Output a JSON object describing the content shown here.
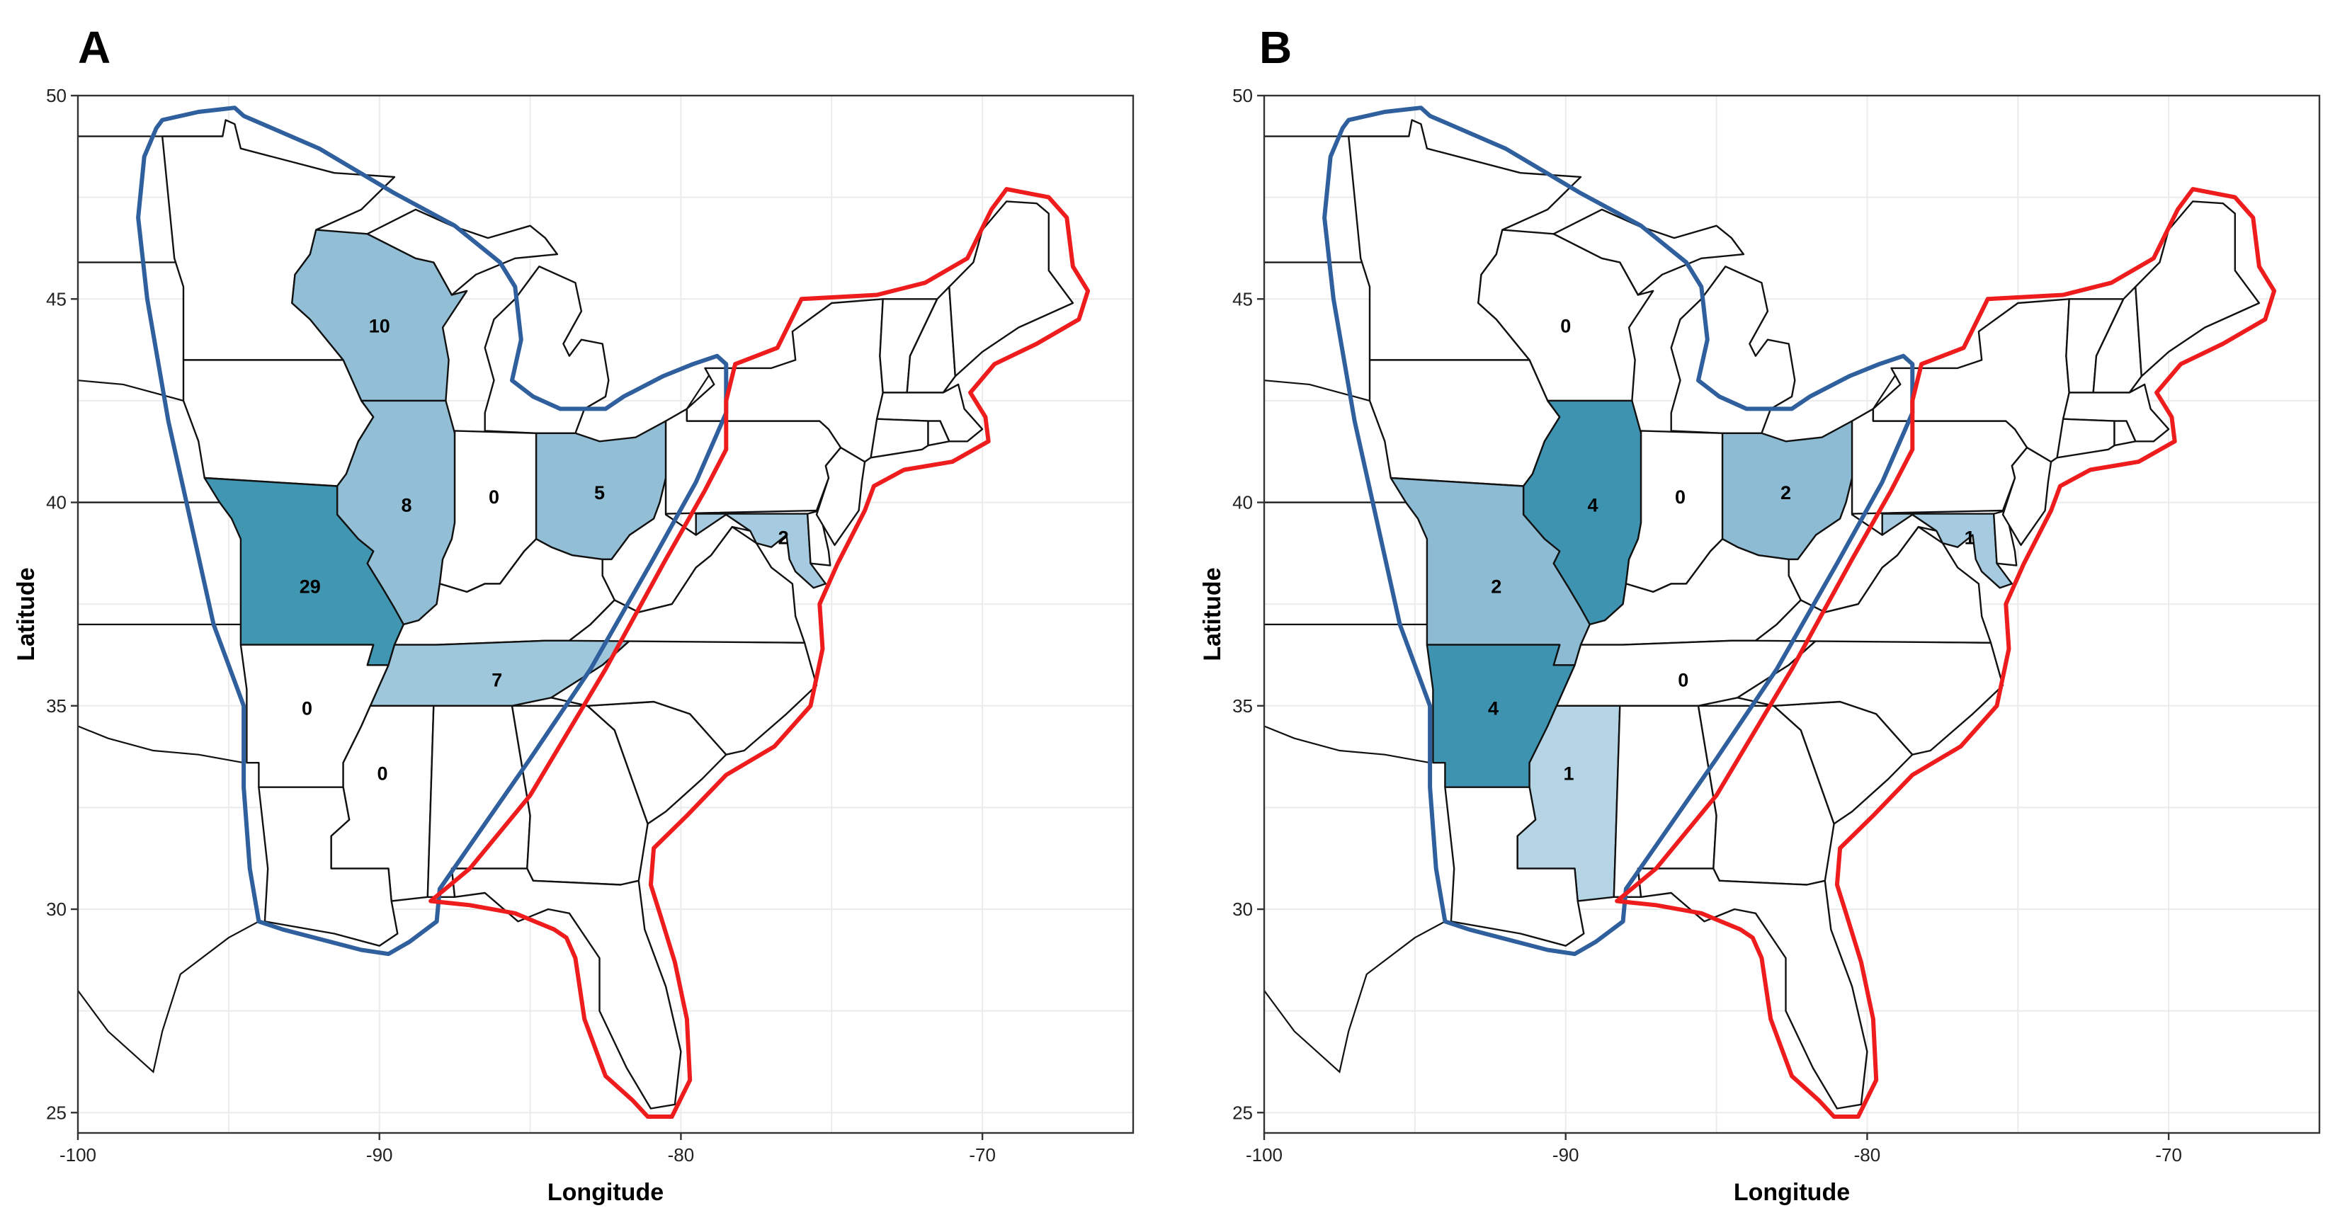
{
  "panels": [
    {
      "letter": "A",
      "counts": {
        "WI": "10",
        "IL": "8",
        "IN": "0",
        "OH": "5",
        "MO": "29",
        "TN": "7",
        "AR": "0",
        "MS": "0",
        "MD": "2"
      },
      "fills": {
        "WI": "#93bfd6",
        "IL": "#93bfd6",
        "IN": "#ffffff",
        "OH": "#93bfd6",
        "MO": "#4196b2",
        "TN": "#9fc7dc",
        "AR": "#ffffff",
        "MS": "#ffffff",
        "MD": "#a6cbe0"
      }
    },
    {
      "letter": "B",
      "counts": {
        "WI": "0",
        "IL": "4",
        "IN": "0",
        "OH": "2",
        "MO": "2",
        "TN": "0",
        "AR": "4",
        "MS": "1",
        "MD": "1"
      },
      "fills": {
        "WI": "#ffffff",
        "IL": "#3e93b0",
        "IN": "#ffffff",
        "OH": "#8cbbd3",
        "MO": "#8cbbd3",
        "TN": "#ffffff",
        "AR": "#3e93b0",
        "MS": "#b5d5e6",
        "MD": "#a6cbe0"
      }
    }
  ],
  "axes": {
    "xlabel": "Longitude",
    "ylabel": "Latitude",
    "xticks": [
      "-100",
      "-90",
      "-80",
      "-70"
    ],
    "yticks": [
      "25",
      "30",
      "35",
      "40",
      "45",
      "50"
    ]
  },
  "chart_data": [
    {
      "type": "choropleth map",
      "panel": "A",
      "xlabel": "Longitude",
      "ylabel": "Latitude",
      "xlim": [
        -100,
        -65
      ],
      "ylim": [
        24.5,
        50
      ],
      "values": {
        "Wisconsin": 10,
        "Illinois": 8,
        "Indiana": 0,
        "Ohio": 5,
        "Missouri": 29,
        "Tennessee": 7,
        "Arkansas": 0,
        "Mississippi": 0,
        "Maryland": 2
      },
      "regions": [
        {
          "name": "western region",
          "color": "#2f5f9c"
        },
        {
          "name": "eastern region",
          "color": "#ee1c1c"
        }
      ]
    },
    {
      "type": "choropleth map",
      "panel": "B",
      "xlabel": "Longitude",
      "ylabel": "Latitude",
      "xlim": [
        -100,
        -65
      ],
      "ylim": [
        24.5,
        50
      ],
      "values": {
        "Wisconsin": 0,
        "Illinois": 4,
        "Indiana": 0,
        "Ohio": 2,
        "Missouri": 2,
        "Tennessee": 0,
        "Arkansas": 4,
        "Mississippi": 1,
        "Maryland": 1
      },
      "regions": [
        {
          "name": "western region",
          "color": "#2f5f9c"
        },
        {
          "name": "eastern region",
          "color": "#ee1c1c"
        }
      ]
    }
  ]
}
